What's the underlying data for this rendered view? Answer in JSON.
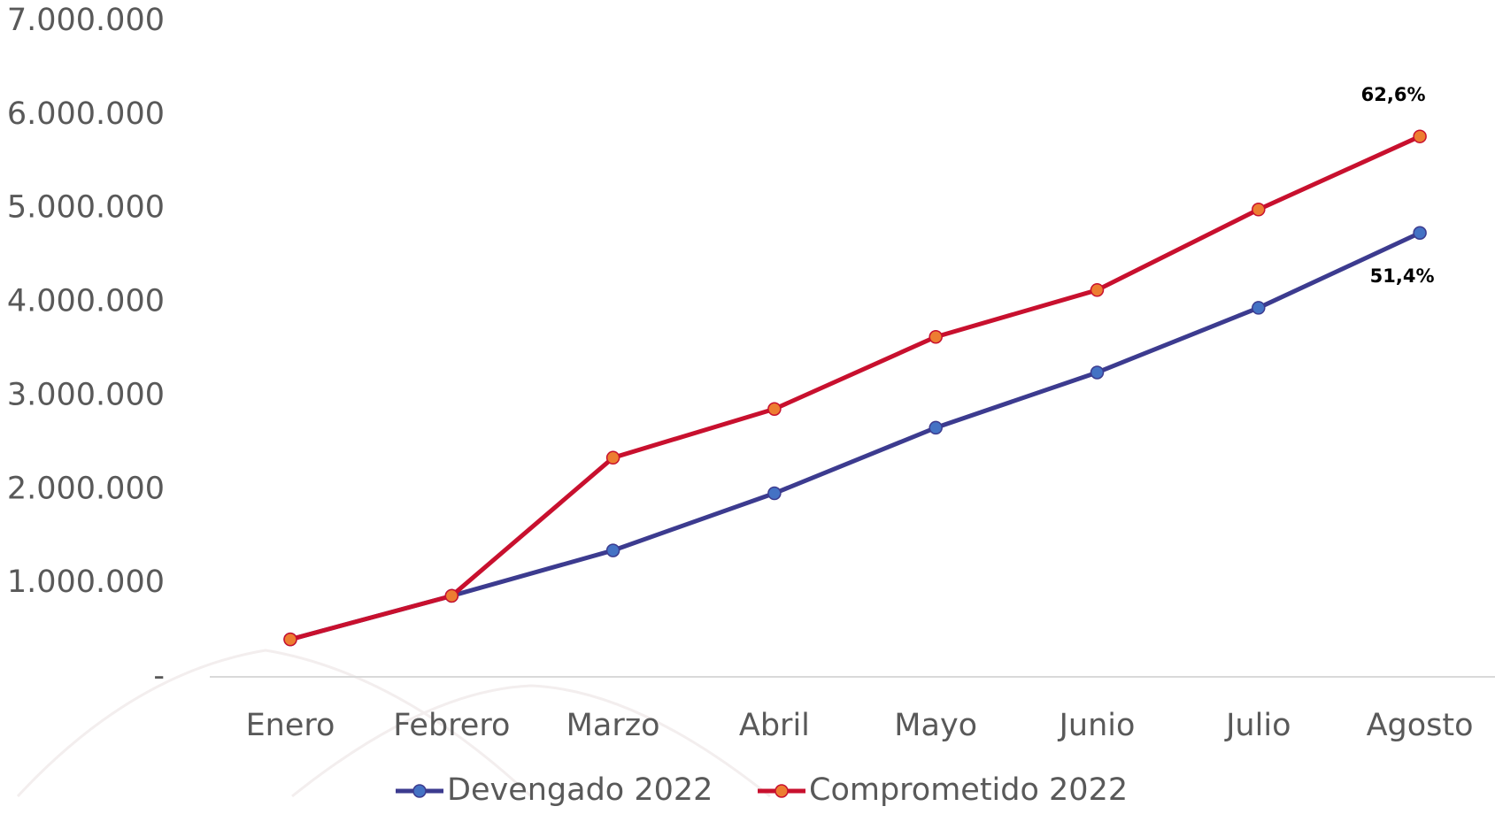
{
  "chart_data": {
    "type": "line",
    "categories": [
      "Enero",
      "Febrero",
      "Marzo",
      "Abril",
      "Mayo",
      "Junio",
      "Julio",
      "Agosto"
    ],
    "series": [
      {
        "name": "Devengado 2022",
        "color": "#3c3b8f",
        "marker_color": "#4472c4",
        "values": [
          400000,
          865000,
          1350000,
          1960000,
          2660000,
          3250000,
          3940000,
          4740000
        ],
        "end_label": "51,4%"
      },
      {
        "name": "Comprometido 2022",
        "color": "#c8102e",
        "marker_color": "#ed7d31",
        "values": [
          400000,
          865000,
          2340000,
          2860000,
          3630000,
          4130000,
          4990000,
          5770000
        ],
        "end_label": "62,6%"
      }
    ],
    "ylim": [
      0,
      7000000
    ],
    "yticks": [
      {
        "value": 0,
        "label": "-"
      },
      {
        "value": 1000000,
        "label": "1.000.000"
      },
      {
        "value": 2000000,
        "label": "2.000.000"
      },
      {
        "value": 3000000,
        "label": "3.000.000"
      },
      {
        "value": 4000000,
        "label": "4.000.000"
      },
      {
        "value": 5000000,
        "label": "5.000.000"
      },
      {
        "value": 6000000,
        "label": "6.000.000"
      },
      {
        "value": 7000000,
        "label": "7.000.000"
      }
    ],
    "grid": false,
    "legend": "bottom"
  }
}
